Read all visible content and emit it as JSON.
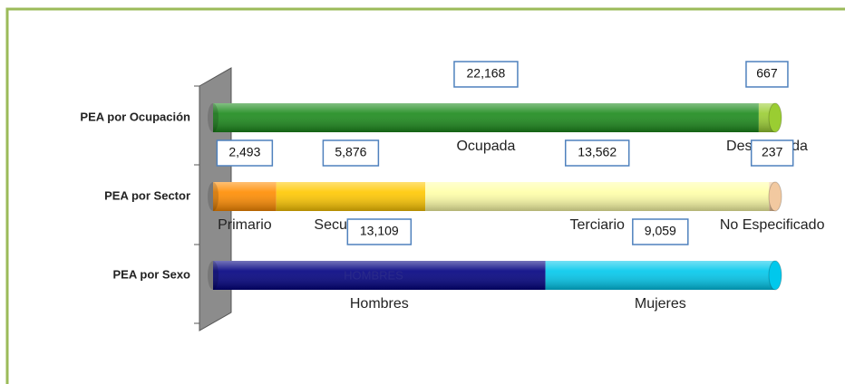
{
  "chart_data": {
    "type": "bar",
    "orientation": "horizontal",
    "stacked": true,
    "categories": [
      "PEA por Ocupación",
      "PEA por Sector",
      "PEA por Sexo"
    ],
    "annotation": "HOMBRES",
    "series": [
      {
        "name": "Ocupada",
        "color": "#1b8a1b",
        "values": [
          22168,
          null,
          null
        ],
        "value_labels": [
          "22,168",
          null,
          null
        ]
      },
      {
        "name": "Desocupada",
        "color": "#9acd32",
        "values": [
          667,
          null,
          null
        ],
        "value_labels": [
          "667",
          null,
          null
        ]
      },
      {
        "name": "Primario",
        "color": "#ff8c00",
        "values": [
          null,
          2493,
          null
        ],
        "value_labels": [
          null,
          "2,493",
          null
        ]
      },
      {
        "name": "Secundario",
        "color": "#ffc800",
        "values": [
          null,
          5876,
          null
        ],
        "value_labels": [
          null,
          "5,876",
          null
        ]
      },
      {
        "name": "Terciario",
        "color": "#ffffa8",
        "values": [
          null,
          13562,
          null
        ],
        "value_labels": [
          null,
          "13,562",
          null
        ]
      },
      {
        "name": "No Especificado",
        "color": "#f2c9a0",
        "values": [
          null,
          237,
          null
        ],
        "value_labels": [
          null,
          "237",
          null
        ]
      },
      {
        "name": "Hombres",
        "color": "#000080",
        "values": [
          null,
          null,
          13109
        ],
        "value_labels": [
          null,
          null,
          "13,109"
        ]
      },
      {
        "name": "Mujeres",
        "color": "#00c8ec",
        "values": [
          null,
          null,
          9059
        ],
        "value_labels": [
          null,
          null,
          "9,059"
        ]
      }
    ]
  }
}
